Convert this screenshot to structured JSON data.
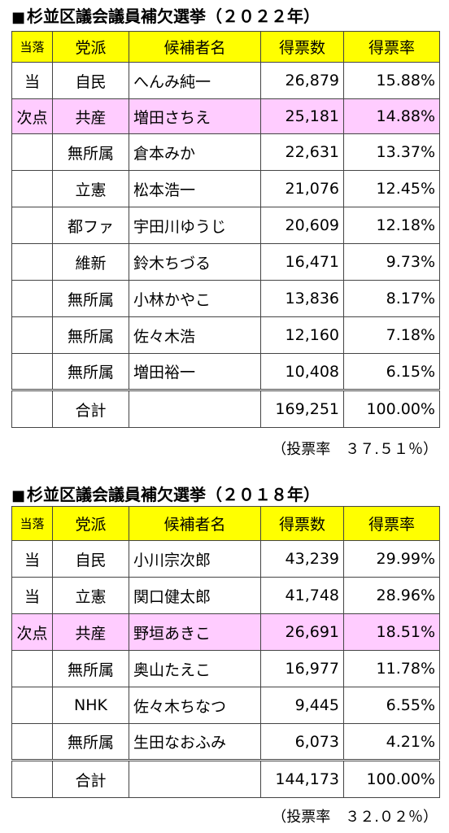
{
  "elections": [
    {
      "title": "杉並区議会議員補欠選挙（２０２２年）",
      "title_marker": "■",
      "headers": {
        "result": "当落",
        "party": "党派",
        "candidate": "候補者名",
        "votes": "得票数",
        "rate": "得票率"
      },
      "rows": [
        {
          "result": "当",
          "party": "自民",
          "candidate": "へんみ純一",
          "votes": "26,879",
          "rate": "15.88%"
        },
        {
          "result": "次点",
          "party": "共産",
          "candidate": "増田さちえ",
          "votes": "25,181",
          "rate": "14.88%"
        },
        {
          "result": "",
          "party": "無所属",
          "candidate": "倉本みか",
          "votes": "22,631",
          "rate": "13.37%"
        },
        {
          "result": "",
          "party": "立憲",
          "candidate": "松本浩一",
          "votes": "21,076",
          "rate": "12.45%"
        },
        {
          "result": "",
          "party": "都ファ",
          "candidate": "宇田川ゆうじ",
          "votes": "20,609",
          "rate": "12.18%"
        },
        {
          "result": "",
          "party": "維新",
          "candidate": "鈴木ちづる",
          "votes": "16,471",
          "rate": "9.73%"
        },
        {
          "result": "",
          "party": "無所属",
          "candidate": "小林かやこ",
          "votes": "13,836",
          "rate": "8.17%"
        },
        {
          "result": "",
          "party": "無所属",
          "candidate": "佐々木浩",
          "votes": "12,160",
          "rate": "7.18%"
        },
        {
          "result": "",
          "party": "無所属",
          "candidate": "増田裕一",
          "votes": "10,408",
          "rate": "6.15%"
        }
      ],
      "total": {
        "label": "合計",
        "votes": "169,251",
        "rate": "100.00%"
      },
      "turnout": "（投票率　３７.５１％）"
    },
    {
      "title": "杉並区議会議員補欠選挙（２０１８年）",
      "title_marker": "■",
      "headers": {
        "result": "当落",
        "party": "党派",
        "candidate": "候補者名",
        "votes": "得票数",
        "rate": "得票率"
      },
      "rows": [
        {
          "result": "当",
          "party": "自民",
          "candidate": "小川宗次郎",
          "votes": "43,239",
          "rate": "29.99%"
        },
        {
          "result": "当",
          "party": "立憲",
          "candidate": "関口健太郎",
          "votes": "41,748",
          "rate": "28.96%"
        },
        {
          "result": "次点",
          "party": "共産",
          "candidate": "野垣あきこ",
          "votes": "26,691",
          "rate": "18.51%"
        },
        {
          "result": "",
          "party": "無所属",
          "candidate": "奥山たえこ",
          "votes": "16,977",
          "rate": "11.78%"
        },
        {
          "result": "",
          "party": "NHK",
          "candidate": "佐々木ちなつ",
          "votes": "9,445",
          "rate": "6.55%"
        },
        {
          "result": "",
          "party": "無所属",
          "candidate": "生田なおふみ",
          "votes": "6,073",
          "rate": "4.21%"
        }
      ],
      "total": {
        "label": "合計",
        "votes": "144,173",
        "rate": "100.00%"
      },
      "turnout": "（投票率　３２.０２％）"
    }
  ],
  "colors": {
    "header_bg": "#ffff00",
    "runner_up_bg": "#ffccff",
    "border": "#444444"
  }
}
